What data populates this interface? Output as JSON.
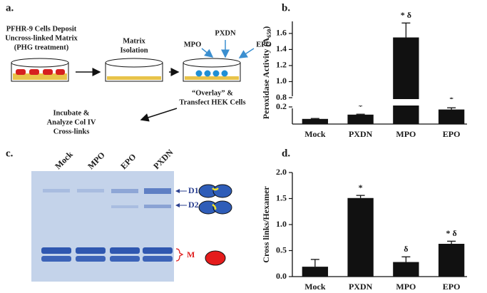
{
  "panel_a": {
    "label": "a.",
    "step1": [
      "PFHR-9 Cells Deposit",
      "Uncross-linked Matrix",
      "(PHG treatment)"
    ],
    "step2": [
      "Matrix",
      "Isolation"
    ],
    "enzymes": [
      "PXDN",
      "MPO",
      "EPO"
    ],
    "step3": [
      "“Overlay” &",
      "Transfect HEK Cells"
    ],
    "step4": [
      "Incubate &",
      "Analyze Col IV",
      "Cross-links"
    ]
  },
  "panel_c": {
    "label": "c.",
    "lanes": [
      "Mock",
      "MPO",
      "EPO",
      "PXDN"
    ],
    "bands": [
      "D1",
      "D2",
      "M"
    ]
  },
  "chart_data": [
    {
      "type": "bar",
      "panel_label": "b.",
      "y_label": [
        "Peroxidase Activity (A",
        "650",
        ")"
      ],
      "categories": [
        "Mock",
        "PXDN",
        "MPO",
        "EPO"
      ],
      "values": [
        0.06,
        0.11,
        1.55,
        0.17
      ],
      "errors": [
        0.005,
        0.005,
        0.18,
        0.02
      ],
      "annotations": [
        null,
        "*",
        "* δ",
        "*"
      ],
      "color": "#111111",
      "ylim": [
        0,
        1.75
      ],
      "y_break": [
        0.2,
        0.8
      ],
      "yticks": [
        0.2,
        0.8,
        {
          "value": 1,
          "label": "1.0"
        },
        1.2,
        1.4,
        1.6
      ]
    },
    {
      "type": "bar",
      "panel_label": "d.",
      "y_label": [
        "Cross links/Hexamer"
      ],
      "categories": [
        "Mock",
        "PXDN",
        "MPO",
        "EPO"
      ],
      "values": [
        0.19,
        1.51,
        0.28,
        0.63
      ],
      "errors": [
        0.14,
        0.05,
        0.1,
        0.05
      ],
      "annotations": [
        null,
        "*",
        "δ",
        "* δ"
      ],
      "color": "#111111",
      "ylim": [
        0,
        2
      ],
      "yticks": [
        {
          "value": 0,
          "label": "0.0"
        },
        0.5,
        {
          "value": 1,
          "label": "1.0"
        },
        1.5,
        {
          "value": 2,
          "label": "2.0"
        }
      ]
    }
  ]
}
